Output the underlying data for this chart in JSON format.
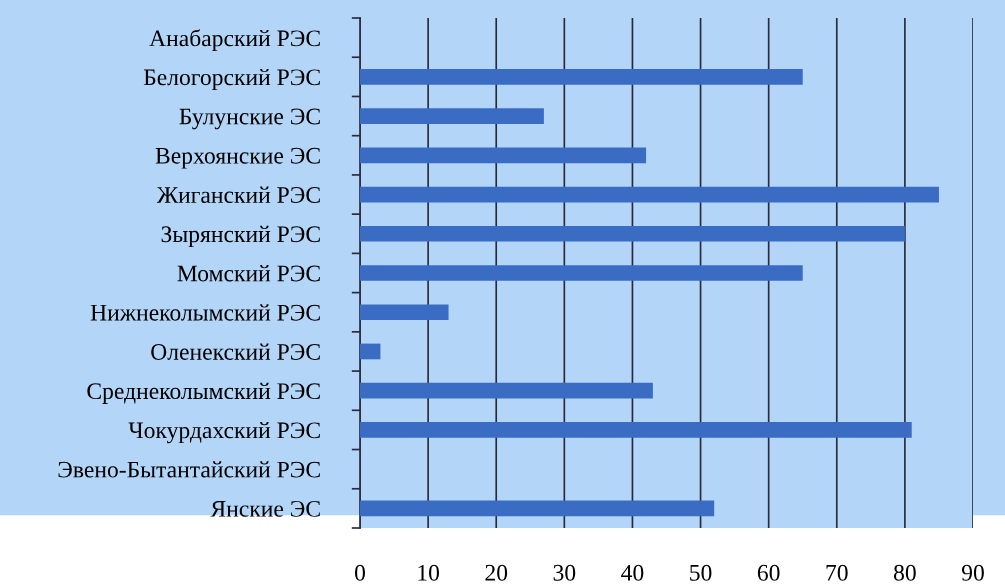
{
  "chart_data": {
    "type": "bar",
    "orientation": "horizontal",
    "categories": [
      "Анабарский РЭС",
      "Белогорский РЭС",
      "Булунские ЭС",
      "Верхоянские ЭС",
      "Жиганский РЭС",
      "Зырянский РЭС",
      "Момский РЭС",
      "Нижнеколымский РЭС",
      "Оленекский РЭС",
      "Среднеколымский РЭС",
      "Чокурдахский РЭС",
      "Эвено-Бытантайский РЭС",
      "Янские ЭС"
    ],
    "values": [
      0,
      65,
      27,
      42,
      85,
      80,
      65,
      13,
      3,
      43,
      81,
      0,
      52
    ],
    "color": "#3a6cc4",
    "xlim": [
      0,
      90
    ],
    "xticks": [
      0,
      10,
      20,
      30,
      40,
      50,
      60,
      70,
      80,
      90
    ],
    "grid": "x",
    "legend": false
  }
}
